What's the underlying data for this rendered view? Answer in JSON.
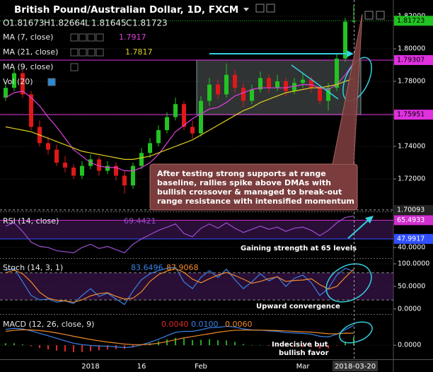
{
  "header": {
    "title": "British Pound/Australian Dollar, 1D, FXCM",
    "ohlc_letters": [
      "O",
      "H",
      "L",
      "C"
    ]
  },
  "chart_data": [
    {
      "type": "candlestick",
      "categories": [
        null,
        null,
        null,
        null,
        null,
        null,
        null,
        null,
        null,
        null,
        "2018",
        null,
        null,
        null,
        null,
        null,
        "16",
        null,
        null,
        null,
        null,
        null,
        null,
        "Feb",
        null,
        null,
        null,
        null,
        null,
        null,
        null,
        null,
        null,
        null,
        null,
        "Mar",
        null,
        null,
        null,
        null,
        null,
        "2018-03-20"
      ],
      "ohlc": [
        [
          1.77,
          1.779,
          1.768,
          1.776
        ],
        [
          1.776,
          1.788,
          1.774,
          1.785
        ],
        [
          1.785,
          1.787,
          1.77,
          1.772
        ],
        [
          1.772,
          1.774,
          1.75,
          1.752
        ],
        [
          1.752,
          1.756,
          1.74,
          1.742
        ],
        [
          1.742,
          1.746,
          1.735,
          1.738
        ],
        [
          1.738,
          1.741,
          1.728,
          1.73
        ],
        [
          1.73,
          1.734,
          1.724,
          1.727
        ],
        [
          1.727,
          1.729,
          1.72,
          1.722
        ],
        [
          1.722,
          1.731,
          1.72,
          1.728
        ],
        [
          1.728,
          1.735,
          1.726,
          1.732
        ],
        [
          1.732,
          1.734,
          1.722,
          1.725
        ],
        [
          1.725,
          1.731,
          1.723,
          1.728
        ],
        [
          1.728,
          1.73,
          1.719,
          1.722
        ],
        [
          1.722,
          1.725,
          1.711,
          1.716
        ],
        [
          1.716,
          1.73,
          1.714,
          1.728
        ],
        [
          1.728,
          1.739,
          1.726,
          1.736
        ],
        [
          1.736,
          1.745,
          1.733,
          1.742
        ],
        [
          1.742,
          1.753,
          1.74,
          1.75
        ],
        [
          1.75,
          1.761,
          1.748,
          1.758
        ],
        [
          1.758,
          1.77,
          1.756,
          1.766
        ],
        [
          1.766,
          1.768,
          1.75,
          1.752
        ],
        [
          1.752,
          1.756,
          1.745,
          1.748
        ],
        [
          1.748,
          1.771,
          1.746,
          1.768
        ],
        [
          1.768,
          1.782,
          1.765,
          1.778
        ],
        [
          1.778,
          1.781,
          1.769,
          1.772
        ],
        [
          1.772,
          1.791,
          1.77,
          1.784
        ],
        [
          1.784,
          1.787,
          1.773,
          1.776
        ],
        [
          1.776,
          1.779,
          1.764,
          1.768
        ],
        [
          1.768,
          1.778,
          1.766,
          1.775
        ],
        [
          1.775,
          1.786,
          1.773,
          1.782
        ],
        [
          1.782,
          1.784,
          1.773,
          1.776
        ],
        [
          1.776,
          1.784,
          1.774,
          1.78
        ],
        [
          1.78,
          1.782,
          1.771,
          1.774
        ],
        [
          1.774,
          1.782,
          1.772,
          1.779
        ],
        [
          1.779,
          1.785,
          1.776,
          1.781
        ],
        [
          1.781,
          1.783,
          1.773,
          1.776
        ],
        [
          1.776,
          1.778,
          1.766,
          1.768
        ],
        [
          1.768,
          1.779,
          1.762,
          1.776
        ],
        [
          1.776,
          1.797,
          1.774,
          1.794
        ],
        [
          1.794,
          1.819,
          1.792,
          1.8167
        ],
        [
          1.81673,
          1.82664,
          1.81645,
          1.81723
        ]
      ],
      "up_color": "#22c322",
      "down_color": "#e01818",
      "series": [
        {
          "name": "MA (7, close)",
          "color": "#e040e0",
          "values": [
            1.77,
            1.773,
            1.774,
            1.77,
            1.765,
            1.758,
            1.752,
            1.745,
            1.738,
            1.734,
            1.73,
            1.728,
            1.727,
            1.727,
            1.725,
            1.725,
            1.727,
            1.73,
            1.735,
            1.742,
            1.749,
            1.753,
            1.757,
            1.76,
            1.763,
            1.764,
            1.767,
            1.771,
            1.773,
            1.775,
            1.776,
            1.776,
            1.776,
            1.776,
            1.777,
            1.778,
            1.778,
            1.776,
            1.775,
            1.778,
            1.784,
            1.7917
          ]
        },
        {
          "name": "MA (21, close)",
          "color": "#e0d020",
          "values": [
            1.752,
            1.751,
            1.75,
            1.749,
            1.747,
            1.745,
            1.743,
            1.741,
            1.739,
            1.737,
            1.736,
            1.735,
            1.734,
            1.733,
            1.732,
            1.732,
            1.733,
            1.734,
            1.736,
            1.738,
            1.74,
            1.742,
            1.744,
            1.747,
            1.75,
            1.753,
            1.756,
            1.759,
            1.762,
            1.764,
            1.767,
            1.769,
            1.771,
            1.773,
            1.774,
            1.775,
            1.776,
            1.776,
            1.777,
            1.778,
            1.78,
            1.7817
          ]
        }
      ],
      "indicators": [
        "MA (9, close)",
        "Vol (20)"
      ],
      "ylim": [
        1.7,
        1.83
      ],
      "yticks": [
        {
          "value": 1.72,
          "label": "1.72000"
        },
        {
          "value": 1.74,
          "label": "1.74000"
        },
        {
          "value": 1.76,
          "label": "1.76000"
        },
        {
          "value": 1.78,
          "label": "1.78000"
        },
        {
          "value": 1.8,
          "label": "1.80000"
        },
        {
          "value": 1.82,
          "label": "1.82000"
        }
      ],
      "levels": [
        {
          "value": 1.79307,
          "color": "#e030e0"
        },
        {
          "value": 1.75951,
          "color": "#e030e0"
        }
      ],
      "crosshair": 1.70093,
      "annotation": [
        "After testing strong supports at range",
        "baseline, rallies spike above DMAs with",
        "bullish crossover & managed to break-out",
        "range resistance with intensified momentum"
      ]
    },
    {
      "type": "line",
      "title": "RSI (14, close)",
      "series": [
        {
          "color": "#9b4fd0",
          "values": [
            60,
            63,
            55,
            45,
            41,
            40,
            37,
            36,
            35,
            40,
            43,
            39,
            41,
            38,
            35,
            43,
            48,
            52,
            56,
            59,
            62,
            53,
            50,
            58,
            62,
            58,
            63,
            58,
            54,
            57,
            60,
            57,
            59,
            55,
            58,
            59,
            56,
            51,
            56,
            63,
            68,
            69.4421
          ]
        }
      ],
      "ylim": [
        32,
        73
      ],
      "yticks": [
        {
          "value": 40,
          "label": "40.0000"
        }
      ],
      "levels": [
        {
          "value": 65.4933,
          "color": "#d030d0"
        },
        {
          "value": 47.9917,
          "color": "#3050ff"
        }
      ],
      "annotation": [
        "Gaining strength at 65 levels"
      ]
    },
    {
      "type": "line",
      "title": "Stoch (14, 3, 1)",
      "series": [
        {
          "color": "#3b82e6",
          "values": [
            85,
            90,
            60,
            30,
            20,
            22,
            15,
            18,
            12,
            30,
            45,
            28,
            35,
            22,
            10,
            40,
            65,
            78,
            85,
            90,
            92,
            60,
            45,
            70,
            85,
            70,
            88,
            65,
            45,
            60,
            78,
            62,
            72,
            50,
            68,
            75,
            58,
            30,
            45,
            75,
            90,
            83.6496
          ]
        },
        {
          "color": "#f08a28",
          "values": [
            80,
            86,
            78,
            60,
            37,
            24,
            19,
            18,
            15,
            20,
            29,
            34,
            36,
            28,
            22,
            24,
            38,
            61,
            76,
            84,
            89,
            81,
            66,
            58,
            67,
            75,
            81,
            74,
            66,
            57,
            61,
            67,
            71,
            61,
            63,
            64,
            67,
            54,
            44,
            50,
            70,
            87.9068
          ]
        }
      ],
      "ylim": [
        -8,
        111
      ],
      "yticks": [
        {
          "value": 0,
          "label": "0.0000"
        },
        {
          "value": 50,
          "label": "50.0000"
        },
        {
          "value": 100,
          "label": "100.0000"
        }
      ],
      "levels": [
        {
          "value": 80,
          "color": "#888888"
        },
        {
          "value": 20,
          "color": "#888888"
        }
      ],
      "annotation": [
        "Upward convergence"
      ]
    },
    {
      "type": "line",
      "title": "MACD (12, 26, close, 9)",
      "series": [
        {
          "type": "bar",
          "color": "#e02828",
          "values": [
            0.001,
            0.001,
            0.0004,
            -0.0005,
            -0.0014,
            -0.0021,
            -0.0027,
            -0.0032,
            -0.0035,
            -0.0034,
            -0.003,
            -0.0026,
            -0.0021,
            -0.0019,
            -0.0018,
            -0.0011,
            -0.0001,
            0.001,
            0.002,
            0.003,
            0.0037,
            0.0033,
            0.0026,
            0.0027,
            0.003,
            0.0025,
            0.0024,
            0.0017,
            0.0006,
            0.0001,
            0,
            -0.0003,
            -0.0004,
            -0.0008,
            -0.0008,
            -0.0008,
            -0.001,
            -0.0017,
            -0.0016,
            -0.0002,
            0.0017,
            0.004
          ],
          "value_labels": [
            null,
            null,
            null,
            null,
            null,
            null,
            null,
            null,
            null,
            null,
            null,
            null,
            null,
            null,
            null,
            null,
            null,
            null,
            null,
            null,
            null,
            null,
            null,
            null,
            null,
            null,
            null,
            null,
            null,
            null,
            null,
            null,
            null,
            null,
            null,
            null,
            null,
            null,
            null,
            null,
            null,
            "0.0040"
          ]
        },
        {
          "color": "#3b82e6",
          "values": [
            0.008,
            0.0085,
            0.0082,
            0.0072,
            0.006,
            0.0048,
            0.0035,
            0.0022,
            0.001,
            0.0003,
            -0.0001,
            -0.0004,
            -0.0005,
            -0.0008,
            -0.0012,
            -0.0008,
            0.0002,
            0.0015,
            0.003,
            0.0048,
            0.0065,
            0.007,
            0.007,
            0.0078,
            0.0088,
            0.009,
            0.0095,
            0.0092,
            0.0082,
            0.0077,
            0.0076,
            0.0072,
            0.007,
            0.0064,
            0.0062,
            0.006,
            0.0056,
            0.0045,
            0.0042,
            0.0055,
            0.0078,
            0.01
          ],
          "value_labels": [
            null,
            null,
            null,
            null,
            null,
            null,
            null,
            null,
            null,
            null,
            null,
            null,
            null,
            null,
            null,
            null,
            null,
            null,
            null,
            null,
            null,
            null,
            null,
            null,
            null,
            null,
            null,
            null,
            null,
            null,
            null,
            null,
            null,
            null,
            null,
            null,
            null,
            null,
            null,
            null,
            null,
            "0.0100"
          ]
        },
        {
          "color": "#f08a28",
          "values": [
            0.007,
            0.0075,
            0.0078,
            0.0077,
            0.0074,
            0.0069,
            0.0062,
            0.0054,
            0.0045,
            0.0037,
            0.0029,
            0.0022,
            0.0016,
            0.0011,
            0.0006,
            0.0003,
            0.0003,
            0.0005,
            0.001,
            0.0018,
            0.0028,
            0.0037,
            0.0044,
            0.0051,
            0.0058,
            0.0065,
            0.0071,
            0.0075,
            0.0076,
            0.0076,
            0.0076,
            0.0075,
            0.0074,
            0.0072,
            0.007,
            0.0068,
            0.0066,
            0.0062,
            0.0058,
            0.0057,
            0.0061,
            0.006
          ],
          "value_labels": [
            null,
            null,
            null,
            null,
            null,
            null,
            null,
            null,
            null,
            null,
            null,
            null,
            null,
            null,
            null,
            null,
            null,
            null,
            null,
            null,
            null,
            null,
            null,
            null,
            null,
            null,
            null,
            null,
            null,
            null,
            null,
            null,
            null,
            null,
            null,
            null,
            null,
            null,
            null,
            null,
            null,
            "0.0060"
          ]
        }
      ],
      "ylim": [
        -0.006,
        0.015
      ],
      "yticks": [
        {
          "value": 0,
          "label": "0.0000"
        }
      ],
      "annotation": [
        "Indecisive but",
        "bullish favor"
      ]
    }
  ]
}
